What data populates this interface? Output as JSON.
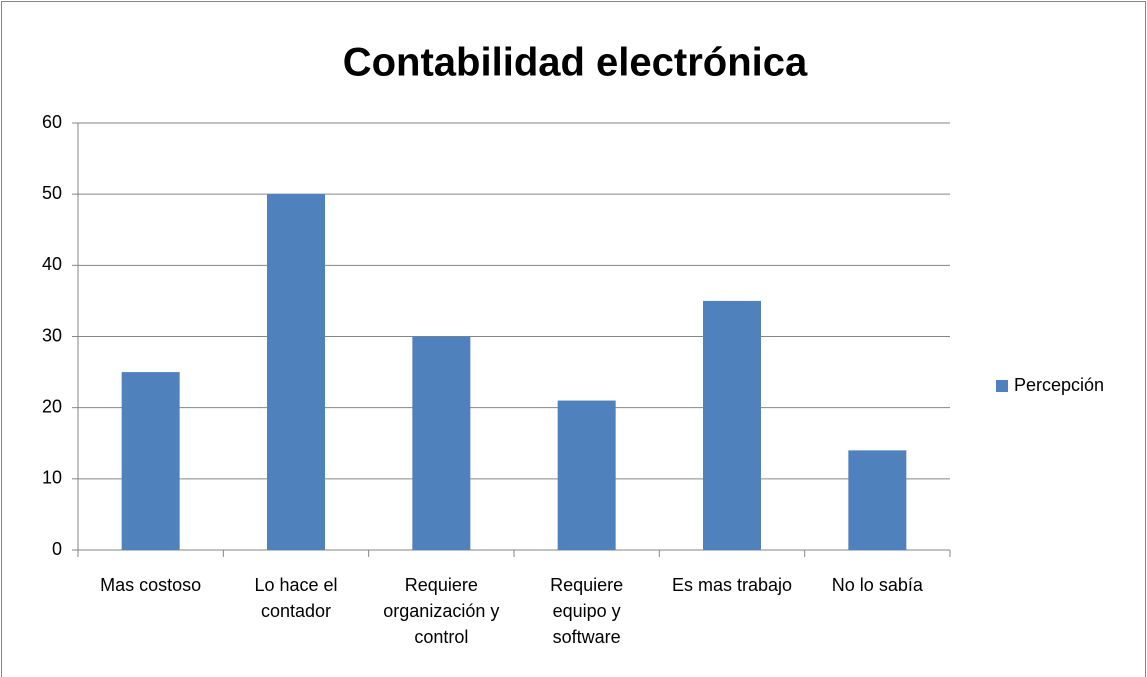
{
  "chart_data": {
    "type": "bar",
    "title": "Contabilidad electrónica",
    "categories": [
      "Mas costoso",
      "Lo hace el contador",
      "Requiere organización y control",
      "Requiere equipo y software",
      "Es mas trabajo",
      "No lo sabía"
    ],
    "series": [
      {
        "name": "Percepción",
        "color": "#4f81bd",
        "values": [
          25,
          50,
          30,
          21,
          35,
          14
        ]
      }
    ],
    "ylim": [
      0,
      60
    ],
    "yticks": [
      0,
      10,
      20,
      30,
      40,
      50,
      60
    ],
    "grid": true,
    "legend": "right"
  }
}
